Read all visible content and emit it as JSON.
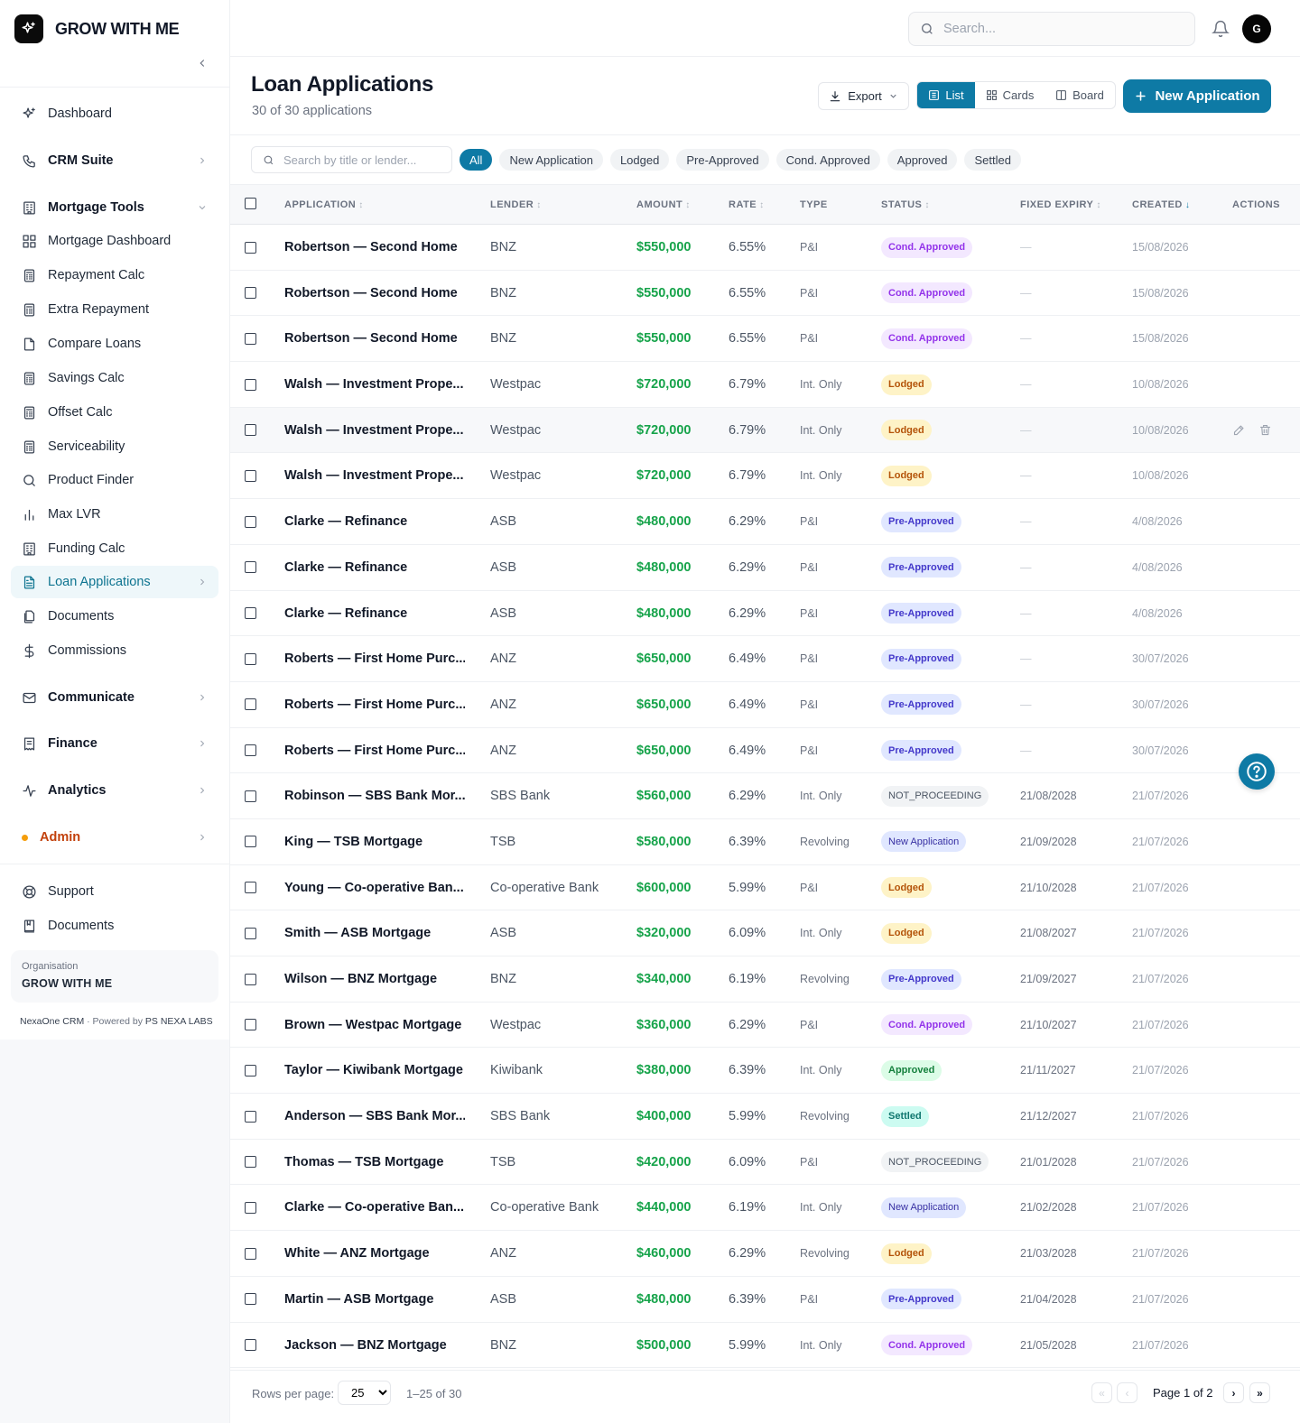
{
  "brand": {
    "name": "GROW WITH ME"
  },
  "sidebar": {
    "items": [
      {
        "label": "Dashboard",
        "icon": "sparkle-icon"
      },
      {
        "label": "CRM Suite",
        "icon": "phone-icon"
      },
      {
        "label": "Mortgage Tools",
        "icon": "building-icon"
      },
      {
        "label": "Mortgage Dashboard",
        "icon": "grid-icon"
      },
      {
        "label": "Repayment Calc",
        "icon": "calculator-icon"
      },
      {
        "label": "Extra Repayment",
        "icon": "calculator-icon"
      },
      {
        "label": "Compare Loans",
        "icon": "file-icon"
      },
      {
        "label": "Savings Calc",
        "icon": "calculator-icon"
      },
      {
        "label": "Offset Calc",
        "icon": "calculator-icon"
      },
      {
        "label": "Serviceability",
        "icon": "calculator-icon"
      },
      {
        "label": "Product Finder",
        "icon": "search-icon"
      },
      {
        "label": "Max LVR",
        "icon": "bar-chart-icon"
      },
      {
        "label": "Funding Calc",
        "icon": "building-icon"
      },
      {
        "label": "Loan Applications",
        "icon": "file-text-icon"
      },
      {
        "label": "Documents",
        "icon": "files-icon"
      },
      {
        "label": "Commissions",
        "icon": "dollar-icon"
      },
      {
        "label": "Communicate",
        "icon": "mail-icon"
      },
      {
        "label": "Finance",
        "icon": "receipt-icon"
      },
      {
        "label": "Analytics",
        "icon": "activity-icon"
      },
      {
        "label": "Admin",
        "icon": "dot-icon"
      }
    ],
    "bottom": [
      {
        "label": "Support",
        "icon": "lifebuoy-icon"
      },
      {
        "label": "Documents",
        "icon": "book-icon"
      }
    ],
    "org_label": "Organisation",
    "org_name": "GROW WITH ME",
    "footer_app": "NexaOne CRM",
    "footer_sep": " · Powered by ",
    "footer_company": "PS NEXA LABS"
  },
  "topbar": {
    "search_placeholder": "Search...",
    "avatar_initial": "G"
  },
  "page": {
    "title": "Loan Applications",
    "subtitle": "30 of 30 applications"
  },
  "toolbar": {
    "export_label": "Export",
    "view_list": "List",
    "view_cards": "Cards",
    "view_board": "Board",
    "new_label": "New Application"
  },
  "filters": {
    "search_placeholder": "Search by title or lender...",
    "chips": [
      "All",
      "New Application",
      "Lodged",
      "Pre-Approved",
      "Cond. Approved",
      "Approved",
      "Settled"
    ],
    "active": "All"
  },
  "table": {
    "columns": [
      "APPLICATION",
      "LENDER",
      "AMOUNT",
      "RATE",
      "TYPE",
      "STATUS",
      "FIXED EXPIRY",
      "CREATED",
      "ACTIONS"
    ],
    "rows": [
      {
        "app": "Robertson — Second Home",
        "lender": "BNZ",
        "amount": "$550,000",
        "rate": "6.55%",
        "type": "P&I",
        "status": "Cond. Approved",
        "fixed": "—",
        "created": "15/08/2026"
      },
      {
        "app": "Robertson — Second Home",
        "lender": "BNZ",
        "amount": "$550,000",
        "rate": "6.55%",
        "type": "P&I",
        "status": "Cond. Approved",
        "fixed": "—",
        "created": "15/08/2026"
      },
      {
        "app": "Robertson — Second Home",
        "lender": "BNZ",
        "amount": "$550,000",
        "rate": "6.55%",
        "type": "P&I",
        "status": "Cond. Approved",
        "fixed": "—",
        "created": "15/08/2026"
      },
      {
        "app": "Walsh — Investment Prope...",
        "lender": "Westpac",
        "amount": "$720,000",
        "rate": "6.79%",
        "type": "Int. Only",
        "status": "Lodged",
        "fixed": "—",
        "created": "10/08/2026"
      },
      {
        "app": "Walsh — Investment Prope...",
        "lender": "Westpac",
        "amount": "$720,000",
        "rate": "6.79%",
        "type": "Int. Only",
        "status": "Lodged",
        "fixed": "—",
        "created": "10/08/2026"
      },
      {
        "app": "Walsh — Investment Prope...",
        "lender": "Westpac",
        "amount": "$720,000",
        "rate": "6.79%",
        "type": "Int. Only",
        "status": "Lodged",
        "fixed": "—",
        "created": "10/08/2026"
      },
      {
        "app": "Clarke — Refinance",
        "lender": "ASB",
        "amount": "$480,000",
        "rate": "6.29%",
        "type": "P&I",
        "status": "Pre-Approved",
        "fixed": "—",
        "created": "4/08/2026"
      },
      {
        "app": "Clarke — Refinance",
        "lender": "ASB",
        "amount": "$480,000",
        "rate": "6.29%",
        "type": "P&I",
        "status": "Pre-Approved",
        "fixed": "—",
        "created": "4/08/2026"
      },
      {
        "app": "Clarke — Refinance",
        "lender": "ASB",
        "amount": "$480,000",
        "rate": "6.29%",
        "type": "P&I",
        "status": "Pre-Approved",
        "fixed": "—",
        "created": "4/08/2026"
      },
      {
        "app": "Roberts — First Home Purc...",
        "lender": "ANZ",
        "amount": "$650,000",
        "rate": "6.49%",
        "type": "P&I",
        "status": "Pre-Approved",
        "fixed": "—",
        "created": "30/07/2026"
      },
      {
        "app": "Roberts — First Home Purc...",
        "lender": "ANZ",
        "amount": "$650,000",
        "rate": "6.49%",
        "type": "P&I",
        "status": "Pre-Approved",
        "fixed": "—",
        "created": "30/07/2026"
      },
      {
        "app": "Roberts — First Home Purc...",
        "lender": "ANZ",
        "amount": "$650,000",
        "rate": "6.49%",
        "type": "P&I",
        "status": "Pre-Approved",
        "fixed": "—",
        "created": "30/07/2026"
      },
      {
        "app": "Robinson — SBS Bank Mor...",
        "lender": "SBS Bank",
        "amount": "$560,000",
        "rate": "6.29%",
        "type": "Int. Only",
        "status": "NOT_PROCEEDING",
        "fixed": "21/08/2028",
        "created": "21/07/2026"
      },
      {
        "app": "King — TSB Mortgage",
        "lender": "TSB",
        "amount": "$580,000",
        "rate": "6.39%",
        "type": "Revolving",
        "status": "New Application",
        "fixed": "21/09/2028",
        "created": "21/07/2026"
      },
      {
        "app": "Young — Co-operative Ban...",
        "lender": "Co-operative Bank",
        "amount": "$600,000",
        "rate": "5.99%",
        "type": "P&I",
        "status": "Lodged",
        "fixed": "21/10/2028",
        "created": "21/07/2026"
      },
      {
        "app": "Smith — ASB Mortgage",
        "lender": "ASB",
        "amount": "$320,000",
        "rate": "6.09%",
        "type": "Int. Only",
        "status": "Lodged",
        "fixed": "21/08/2027",
        "created": "21/07/2026"
      },
      {
        "app": "Wilson — BNZ Mortgage",
        "lender": "BNZ",
        "amount": "$340,000",
        "rate": "6.19%",
        "type": "Revolving",
        "status": "Pre-Approved",
        "fixed": "21/09/2027",
        "created": "21/07/2026"
      },
      {
        "app": "Brown — Westpac Mortgage",
        "lender": "Westpac",
        "amount": "$360,000",
        "rate": "6.29%",
        "type": "P&I",
        "status": "Cond. Approved",
        "fixed": "21/10/2027",
        "created": "21/07/2026"
      },
      {
        "app": "Taylor — Kiwibank Mortgage",
        "lender": "Kiwibank",
        "amount": "$380,000",
        "rate": "6.39%",
        "type": "Int. Only",
        "status": "Approved",
        "fixed": "21/11/2027",
        "created": "21/07/2026"
      },
      {
        "app": "Anderson — SBS Bank Mor...",
        "lender": "SBS Bank",
        "amount": "$400,000",
        "rate": "5.99%",
        "type": "Revolving",
        "status": "Settled",
        "fixed": "21/12/2027",
        "created": "21/07/2026"
      },
      {
        "app": "Thomas — TSB Mortgage",
        "lender": "TSB",
        "amount": "$420,000",
        "rate": "6.09%",
        "type": "P&I",
        "status": "NOT_PROCEEDING",
        "fixed": "21/01/2028",
        "created": "21/07/2026"
      },
      {
        "app": "Clarke — Co-operative Ban...",
        "lender": "Co-operative Bank",
        "amount": "$440,000",
        "rate": "6.19%",
        "type": "Int. Only",
        "status": "New Application",
        "fixed": "21/02/2028",
        "created": "21/07/2026"
      },
      {
        "app": "White — ANZ Mortgage",
        "lender": "ANZ",
        "amount": "$460,000",
        "rate": "6.29%",
        "type": "Revolving",
        "status": "Lodged",
        "fixed": "21/03/2028",
        "created": "21/07/2026"
      },
      {
        "app": "Martin — ASB Mortgage",
        "lender": "ASB",
        "amount": "$480,000",
        "rate": "6.39%",
        "type": "P&I",
        "status": "Pre-Approved",
        "fixed": "21/04/2028",
        "created": "21/07/2026"
      },
      {
        "app": "Jackson — BNZ Mortgage",
        "lender": "BNZ",
        "amount": "$500,000",
        "rate": "5.99%",
        "type": "Int. Only",
        "status": "Cond. Approved",
        "fixed": "21/05/2028",
        "created": "21/07/2026"
      }
    ],
    "hovered_row": 4
  },
  "pagination": {
    "rows_label": "Rows per page:",
    "rows_value": "25",
    "range": "1–25 of 30",
    "page_info": "Page 1 of 2"
  },
  "colors": {
    "accent": "#0e7aa5",
    "amount": "#16a34a",
    "admin_dot": "#f59e0b"
  }
}
